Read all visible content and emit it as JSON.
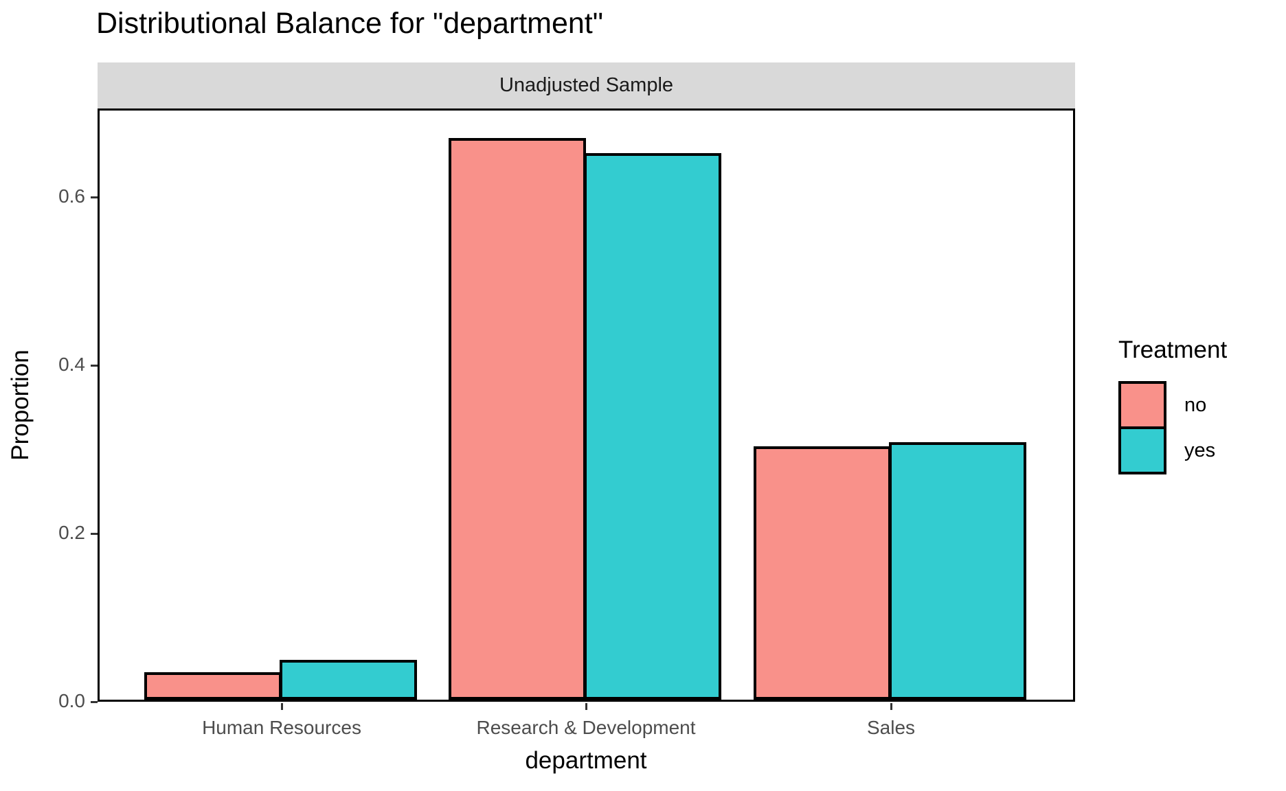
{
  "title": "Distributional Balance for \"department\"",
  "facet_label": "Unadjusted Sample",
  "legend": {
    "title": "Treatment",
    "position": "right",
    "items": [
      {
        "label": "no",
        "color": "#F9918A"
      },
      {
        "label": "yes",
        "color": "#33CCD0"
      }
    ]
  },
  "chart_data": {
    "type": "bar",
    "title": "Distributional Balance for \"department\"",
    "facet": "Unadjusted Sample",
    "categories": [
      "Human Resources",
      "Research & Development",
      "Sales"
    ],
    "series": [
      {
        "name": "no",
        "color": "#F9918A",
        "values": [
          0.033,
          0.668,
          0.301
        ]
      },
      {
        "name": "yes",
        "color": "#33CCD0",
        "values": [
          0.047,
          0.65,
          0.306
        ]
      }
    ],
    "xlabel": "department",
    "ylabel": "Proportion",
    "ylim": [
      0,
      0.705
    ],
    "yticks": [
      0.0,
      0.2,
      0.4,
      0.6
    ],
    "ytick_labels": [
      "0.0",
      "0.2",
      "0.4",
      "0.6"
    ],
    "grid": false,
    "bar_outline": "#000000",
    "strip_background": "#D9D9D9",
    "tick_label_color": "#4D4D4D",
    "legend_title": "Treatment",
    "legend_position": "right"
  }
}
